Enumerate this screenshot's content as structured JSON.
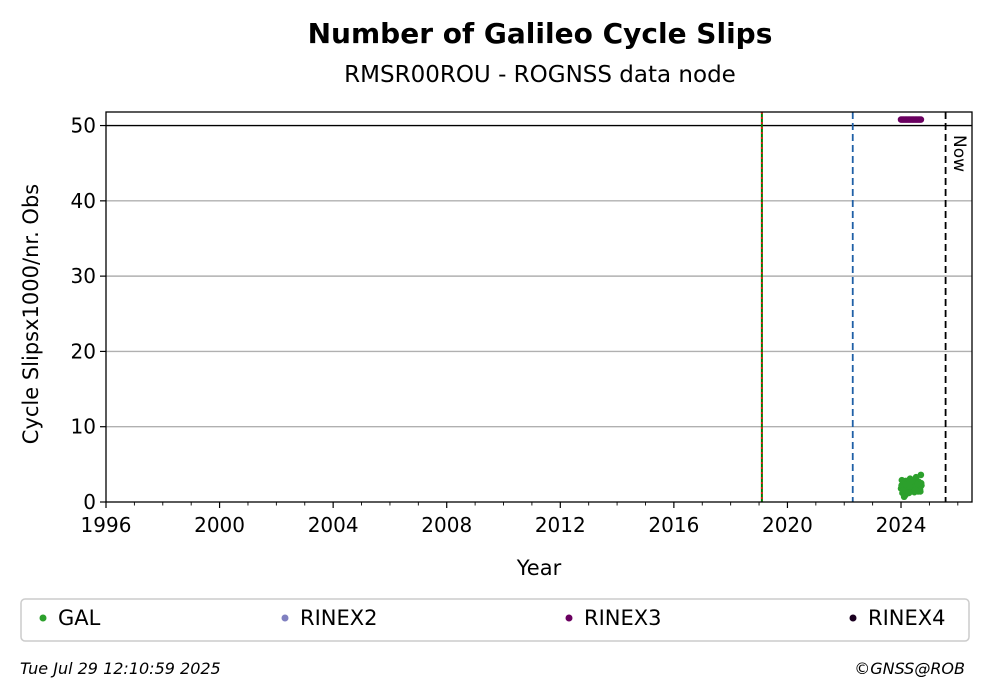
{
  "chart_data": {
    "type": "scatter",
    "title": "Number of Galileo Cycle Slips",
    "subtitle": "RMSR00ROU - ROGNSS data node",
    "xlabel": "Year",
    "ylabel": "Cycle Slipsx1000/nr. Obs",
    "xlim": [
      1996,
      2026.5
    ],
    "ylim": [
      0,
      51.8
    ],
    "xticks": [
      1996,
      2000,
      2004,
      2008,
      2012,
      2016,
      2020,
      2024
    ],
    "yticks": [
      0,
      10,
      20,
      30,
      40,
      50
    ],
    "grid": "y",
    "reference_line_y": 50,
    "vertical_lines": [
      {
        "x": 2019.1,
        "style": "solid",
        "color": "#008000"
      },
      {
        "x": 2019.1,
        "style": "dotted",
        "color": "#e41a1c"
      },
      {
        "x": 2022.3,
        "style": "dashed",
        "color": "#1f5fa6"
      },
      {
        "x": 2025.57,
        "style": "dashed",
        "color": "#000000",
        "label": "Now"
      }
    ],
    "series": [
      {
        "name": "GAL",
        "color": "#2ca02c",
        "x": [
          2024.0,
          2024.02,
          2024.05,
          2024.08,
          2024.1,
          2024.12,
          2024.15,
          2024.17,
          2024.2,
          2024.22,
          2024.25,
          2024.27,
          2024.3,
          2024.32,
          2024.35,
          2024.37,
          2024.4,
          2024.42,
          2024.45,
          2024.47,
          2024.5,
          2024.52,
          2024.55,
          2024.57,
          2024.6,
          2024.62,
          2024.65,
          2024.67,
          2024.7,
          2024.72,
          2024.03,
          2024.13,
          2024.23,
          2024.33,
          2024.43,
          2024.53,
          2024.63,
          2024.07,
          2024.18,
          2024.28,
          2024.38,
          2024.48,
          2024.58,
          2024.68,
          2024.11,
          2024.31,
          2024.51,
          2024.71
        ],
        "values": [
          1.8,
          2.2,
          1.2,
          2.5,
          1.6,
          2.0,
          0.9,
          2.8,
          1.4,
          2.1,
          1.7,
          2.4,
          1.9,
          3.1,
          1.5,
          2.6,
          2.2,
          1.8,
          2.9,
          1.3,
          2.0,
          1.6,
          2.3,
          1.9,
          1.4,
          2.7,
          2.1,
          1.7,
          3.6,
          2.2,
          2.9,
          1.1,
          2.5,
          1.6,
          2.0,
          3.3,
          1.8,
          1.5,
          2.3,
          1.2,
          2.8,
          1.9,
          2.4,
          1.4,
          0.7,
          2.1,
          1.6,
          2.5
        ]
      },
      {
        "name": "RINEX2",
        "color": "#8080c0",
        "x": [],
        "values": []
      },
      {
        "name": "RINEX3",
        "color": "#6a0060",
        "x": [
          2024.0,
          2024.05,
          2024.1,
          2024.15,
          2024.2,
          2024.25,
          2024.3,
          2024.35,
          2024.4,
          2024.45,
          2024.5,
          2024.55,
          2024.6,
          2024.65,
          2024.7
        ],
        "values": [
          50.8,
          50.8,
          50.8,
          50.8,
          50.8,
          50.8,
          50.8,
          50.8,
          50.8,
          50.8,
          50.8,
          50.8,
          50.8,
          50.8,
          50.8
        ]
      },
      {
        "name": "RINEX4",
        "color": "#1a0020",
        "x": [],
        "values": []
      }
    ],
    "legend_position": "bottom"
  },
  "footer": {
    "timestamp": "Tue Jul 29 12:10:59 2025",
    "copyright": "©GNSS@ROB"
  }
}
